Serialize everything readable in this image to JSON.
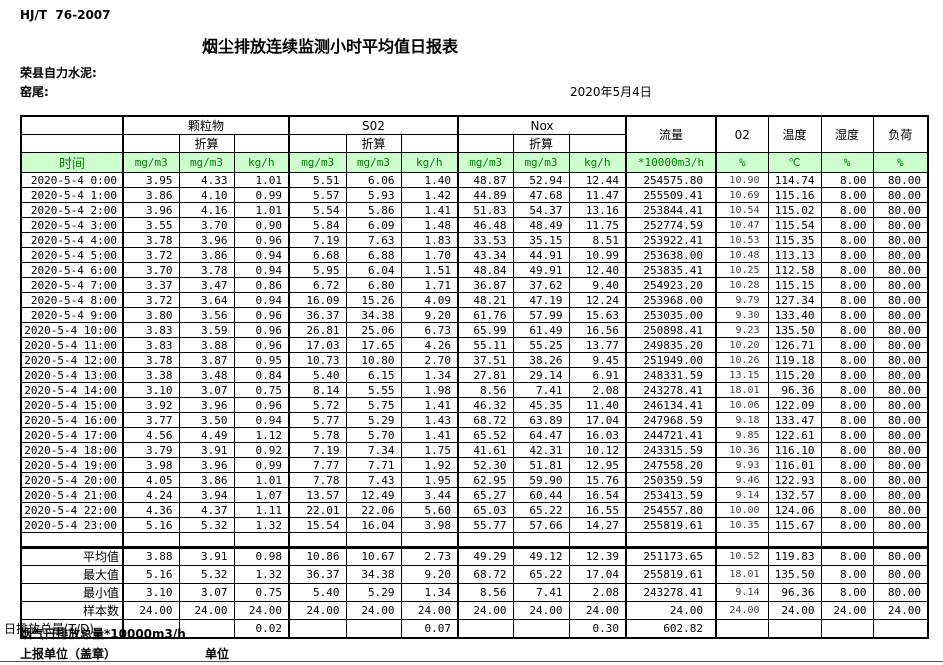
{
  "colors": {
    "header_green_bg": "#ccffcc",
    "header_green_text": "#008000",
    "border": "#000000"
  },
  "header": {
    "doc_code": "HJ/T  76-2007",
    "title": "烟尘排放连续监测小时平均值日报表",
    "company": "荣县自力水泥:",
    "location": "窑尾:",
    "date": "2020年5月4日"
  },
  "table": {
    "time_label": "时间",
    "groups": [
      "颗粒物",
      "S02",
      "Nox"
    ],
    "converted_label": "折算",
    "flow_label": "流量",
    "o2_label": "02",
    "temp_label": "温度",
    "humidity_label": "湿度",
    "load_label": "负荷",
    "units": [
      "mg/m3",
      "mg/m3",
      "kg/h",
      "mg/m3",
      "mg/m3",
      "kg/h",
      "mg/m3",
      "mg/m3",
      "kg/h",
      "*10000m3/h",
      "%",
      "℃",
      "%",
      "%"
    ],
    "rows": [
      [
        "2020-5-4 0:00",
        "3.95",
        "4.33",
        "1.01",
        "5.51",
        "6.06",
        "1.40",
        "48.87",
        "52.94",
        "12.44",
        "254575.80",
        "10.90",
        "114.74",
        "8.00",
        "80.00"
      ],
      [
        "2020-5-4 1:00",
        "3.86",
        "4.10",
        "0.99",
        "5.57",
        "5.93",
        "1.42",
        "44.89",
        "47.68",
        "11.47",
        "255509.41",
        "10.69",
        "115.16",
        "8.00",
        "80.00"
      ],
      [
        "2020-5-4 2:00",
        "3.96",
        "4.16",
        "1.01",
        "5.54",
        "5.86",
        "1.41",
        "51.83",
        "54.37",
        "13.16",
        "253844.41",
        "10.54",
        "115.02",
        "8.00",
        "80.00"
      ],
      [
        "2020-5-4 3:00",
        "3.55",
        "3.70",
        "0.90",
        "5.84",
        "6.09",
        "1.48",
        "46.48",
        "48.49",
        "11.75",
        "252774.59",
        "10.47",
        "115.54",
        "8.00",
        "80.00"
      ],
      [
        "2020-5-4 4:00",
        "3.78",
        "3.96",
        "0.96",
        "7.19",
        "7.63",
        "1.83",
        "33.53",
        "35.15",
        "8.51",
        "253922.41",
        "10.53",
        "115.35",
        "8.00",
        "80.00"
      ],
      [
        "2020-5-4 5:00",
        "3.72",
        "3.86",
        "0.94",
        "6.68",
        "6.88",
        "1.70",
        "43.34",
        "44.91",
        "10.99",
        "253638.00",
        "10.48",
        "113.13",
        "8.00",
        "80.00"
      ],
      [
        "2020-5-4 6:00",
        "3.70",
        "3.78",
        "0.94",
        "5.95",
        "6.04",
        "1.51",
        "48.84",
        "49.91",
        "12.40",
        "253835.41",
        "10.25",
        "112.58",
        "8.00",
        "80.00"
      ],
      [
        "2020-5-4 7:00",
        "3.37",
        "3.47",
        "0.86",
        "6.72",
        "6.80",
        "1.71",
        "36.87",
        "37.62",
        "9.40",
        "254923.20",
        "10.28",
        "115.15",
        "8.00",
        "80.00"
      ],
      [
        "2020-5-4 8:00",
        "3.72",
        "3.64",
        "0.94",
        "16.09",
        "15.26",
        "4.09",
        "48.21",
        "47.19",
        "12.24",
        "253968.00",
        "9.79",
        "127.34",
        "8.00",
        "80.00"
      ],
      [
        "2020-5-4 9:00",
        "3.80",
        "3.56",
        "0.96",
        "36.37",
        "34.38",
        "9.20",
        "61.76",
        "57.99",
        "15.63",
        "253035.00",
        "9.30",
        "133.40",
        "8.00",
        "80.00"
      ],
      [
        "2020-5-4 10:00",
        "3.83",
        "3.59",
        "0.96",
        "26.81",
        "25.06",
        "6.73",
        "65.99",
        "61.49",
        "16.56",
        "250898.41",
        "9.23",
        "135.50",
        "8.00",
        "80.00"
      ],
      [
        "2020-5-4 11:00",
        "3.83",
        "3.88",
        "0.96",
        "17.03",
        "17.65",
        "4.26",
        "55.11",
        "55.25",
        "13.77",
        "249835.20",
        "10.20",
        "126.71",
        "8.00",
        "80.00"
      ],
      [
        "2020-5-4 12:00",
        "3.78",
        "3.87",
        "0.95",
        "10.73",
        "10.80",
        "2.70",
        "37.51",
        "38.26",
        "9.45",
        "251949.00",
        "10.26",
        "119.18",
        "8.00",
        "80.00"
      ],
      [
        "2020-5-4 13:00",
        "3.38",
        "3.48",
        "0.84",
        "5.40",
        "6.15",
        "1.34",
        "27.81",
        "29.14",
        "6.91",
        "248331.59",
        "13.15",
        "115.20",
        "8.00",
        "80.00"
      ],
      [
        "2020-5-4 14:00",
        "3.10",
        "3.07",
        "0.75",
        "8.14",
        "5.55",
        "1.98",
        "8.56",
        "7.41",
        "2.08",
        "243278.41",
        "18.01",
        "96.36",
        "8.00",
        "80.00"
      ],
      [
        "2020-5-4 15:00",
        "3.92",
        "3.96",
        "0.96",
        "5.72",
        "5.75",
        "1.41",
        "46.32",
        "45.35",
        "11.40",
        "246134.41",
        "10.06",
        "122.09",
        "8.00",
        "80.00"
      ],
      [
        "2020-5-4 16:00",
        "3.77",
        "3.50",
        "0.94",
        "5.77",
        "5.29",
        "1.43",
        "68.72",
        "63.89",
        "17.04",
        "247968.59",
        "9.18",
        "133.47",
        "8.00",
        "80.00"
      ],
      [
        "2020-5-4 17:00",
        "4.56",
        "4.49",
        "1.12",
        "5.78",
        "5.70",
        "1.41",
        "65.52",
        "64.47",
        "16.03",
        "244721.41",
        "9.85",
        "122.61",
        "8.00",
        "80.00"
      ],
      [
        "2020-5-4 18:00",
        "3.79",
        "3.91",
        "0.92",
        "7.19",
        "7.34",
        "1.75",
        "41.61",
        "42.31",
        "10.12",
        "243315.59",
        "10.36",
        "116.10",
        "8.00",
        "80.00"
      ],
      [
        "2020-5-4 19:00",
        "3.98",
        "3.96",
        "0.99",
        "7.77",
        "7.71",
        "1.92",
        "52.30",
        "51.81",
        "12.95",
        "247558.20",
        "9.93",
        "116.01",
        "8.00",
        "80.00"
      ],
      [
        "2020-5-4 20:00",
        "4.05",
        "3.86",
        "1.01",
        "7.78",
        "7.43",
        "1.95",
        "62.95",
        "59.90",
        "15.76",
        "250359.59",
        "9.46",
        "122.93",
        "8.00",
        "80.00"
      ],
      [
        "2020-5-4 21:00",
        "4.24",
        "3.94",
        "1.07",
        "13.57",
        "12.49",
        "3.44",
        "65.27",
        "60.44",
        "16.54",
        "253413.59",
        "9.14",
        "132.57",
        "8.00",
        "80.00"
      ],
      [
        "2020-5-4 22:00",
        "4.36",
        "4.37",
        "1.11",
        "22.01",
        "22.06",
        "5.60",
        "65.03",
        "65.22",
        "16.55",
        "254557.80",
        "10.00",
        "124.06",
        "8.00",
        "80.00"
      ],
      [
        "2020-5-4 23:00",
        "5.16",
        "5.32",
        "1.32",
        "15.54",
        "16.04",
        "3.98",
        "55.77",
        "57.66",
        "14.27",
        "255819.61",
        "10.35",
        "115.67",
        "8.00",
        "80.00"
      ]
    ],
    "summary_rows": [
      {
        "label": "平均值",
        "values": [
          "3.88",
          "3.91",
          "0.98",
          "10.86",
          "10.67",
          "2.73",
          "49.29",
          "49.12",
          "12.39",
          "251173.65",
          "10.52",
          "119.83",
          "8.00",
          "80.00"
        ]
      },
      {
        "label": "最大值",
        "values": [
          "5.16",
          "5.32",
          "1.32",
          "36.37",
          "34.38",
          "9.20",
          "68.72",
          "65.22",
          "17.04",
          "255819.61",
          "18.01",
          "135.50",
          "8.00",
          "80.00"
        ]
      },
      {
        "label": "最小值",
        "values": [
          "3.10",
          "3.07",
          "0.75",
          "5.40",
          "5.29",
          "1.34",
          "8.56",
          "7.41",
          "2.08",
          "243278.41",
          "9.14",
          "96.36",
          "8.00",
          "80.00"
        ]
      },
      {
        "label": "样本数",
        "values": [
          "24.00",
          "24.00",
          "24.00",
          "24.00",
          "24.00",
          "24.00",
          "24.00",
          "24.00",
          "24.00",
          "24.00",
          "24.00",
          "24.00",
          "24.00",
          "24.00"
        ]
      },
      {
        "label": "日排放总量(T/D)",
        "values": [
          "",
          "",
          "0.02",
          "",
          "",
          "0.07",
          "",
          "",
          "0.30",
          "602.82",
          "",
          "",
          "",
          ""
        ]
      }
    ]
  },
  "footer": {
    "total_flue_gas": "烟气日排放总量*10000m3/h",
    "report_unit": "上报单位（盖章）",
    "unit_label": "单位"
  }
}
